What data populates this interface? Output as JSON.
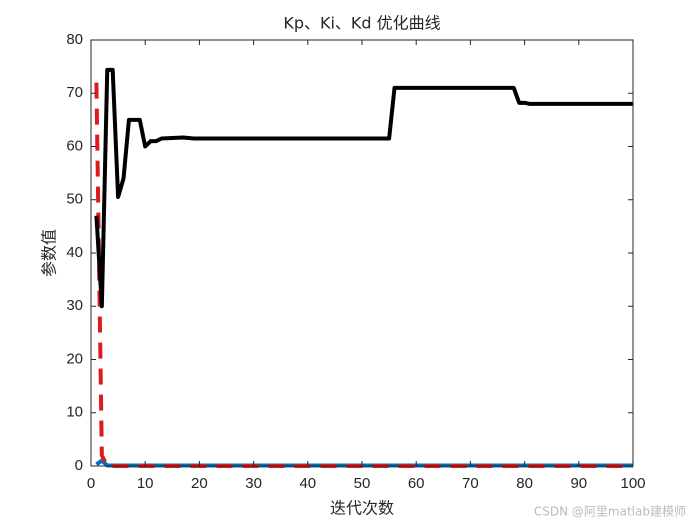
{
  "chart_data": {
    "type": "line",
    "title": "Kp、Ki、Kd 优化曲线",
    "x_label": "迭代次数",
    "y_label": "参数值",
    "watermark": "CSDN @阿里matlab建模师",
    "series": [
      {
        "color": "#0072bd",
        "dashed": false,
        "x": [
          1,
          2,
          3,
          100
        ],
        "values": [
          0.3,
          1,
          0.1,
          0.1
        ]
      },
      {
        "color": "#e0191c",
        "dashed": true,
        "x": [
          1,
          2,
          3,
          100
        ],
        "values": [
          72,
          2,
          0,
          0
        ]
      },
      {
        "color": "#000000",
        "dashed": false,
        "x": [
          1,
          2,
          3,
          4,
          5,
          6,
          7,
          9,
          10,
          11,
          12,
          13,
          17,
          19,
          55,
          56,
          78,
          79,
          80,
          81,
          100
        ],
        "values": [
          47,
          30,
          74.4,
          74.4,
          50.5,
          54,
          65,
          65,
          60,
          61,
          61,
          61.5,
          61.7,
          61.5,
          61.5,
          71,
          71,
          68.2,
          68.2,
          68,
          68
        ]
      }
    ],
    "xlim": [
      0,
      100
    ],
    "xticks": [
      0,
      10,
      20,
      30,
      40,
      50,
      60,
      70,
      80,
      90,
      100
    ],
    "ylim": [
      0,
      80
    ],
    "yticks": [
      0,
      10,
      20,
      30,
      40,
      50,
      60,
      70,
      80
    ],
    "grid": false
  }
}
